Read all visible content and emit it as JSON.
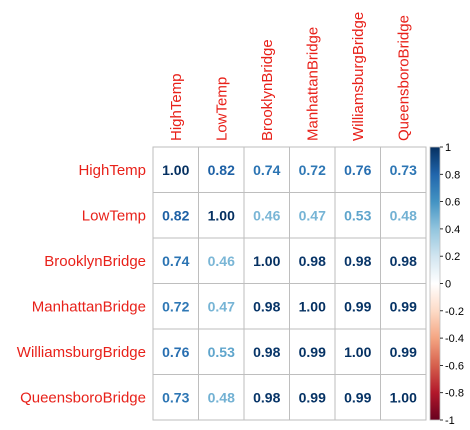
{
  "chart_data": {
    "type": "heatmap",
    "title": "",
    "row_labels": [
      "HighTemp",
      "LowTemp",
      "BrooklynBridge",
      "ManhattanBridge",
      "WilliamsburgBridge",
      "QueensboroBridge"
    ],
    "col_labels": [
      "HighTemp",
      "LowTemp",
      "BrooklynBridge",
      "ManhattanBridge",
      "WilliamsburgBridge",
      "QueensboroBridge"
    ],
    "values": [
      [
        1.0,
        0.82,
        0.74,
        0.72,
        0.76,
        0.73
      ],
      [
        0.82,
        1.0,
        0.46,
        0.47,
        0.53,
        0.48
      ],
      [
        0.74,
        0.46,
        1.0,
        0.98,
        0.98,
        0.98
      ],
      [
        0.72,
        0.47,
        0.98,
        1.0,
        0.99,
        0.99
      ],
      [
        0.76,
        0.53,
        0.98,
        0.99,
        1.0,
        0.99
      ],
      [
        0.73,
        0.48,
        0.98,
        0.99,
        0.99,
        1.0
      ]
    ],
    "value_labels": [
      [
        "1.00",
        "0.82",
        "0.74",
        "0.72",
        "0.76",
        "0.73"
      ],
      [
        "0.82",
        "1.00",
        "0.46",
        "0.47",
        "0.53",
        "0.48"
      ],
      [
        "0.74",
        "0.46",
        "1.00",
        "0.98",
        "0.98",
        "0.98"
      ],
      [
        "0.72",
        "0.47",
        "0.98",
        "1.00",
        "0.99",
        "0.99"
      ],
      [
        "0.76",
        "0.53",
        "0.98",
        "0.99",
        "1.00",
        "0.99"
      ],
      [
        "0.73",
        "0.48",
        "0.98",
        "0.99",
        "0.99",
        "1.00"
      ]
    ],
    "color_scale": {
      "range": [
        -1,
        1
      ],
      "ticks": [
        "1",
        "0.8",
        "0.6",
        "0.4",
        "0.2",
        "0",
        "-0.2",
        "-0.4",
        "-0.6",
        "-0.8",
        "-1"
      ],
      "tick_values": [
        1,
        0.8,
        0.6,
        0.4,
        0.2,
        0,
        -0.2,
        -0.4,
        -0.6,
        -0.8,
        -1
      ],
      "colors": [
        "#67001F",
        "#B2182B",
        "#D6604D",
        "#F4A582",
        "#FDDBC7",
        "#FFFFFF",
        "#D1E5F0",
        "#92C5DE",
        "#4393C3",
        "#2166AC",
        "#053061"
      ],
      "legend_position": "right"
    },
    "label_color": "#e8211a",
    "grid_color": "#bebebe"
  }
}
